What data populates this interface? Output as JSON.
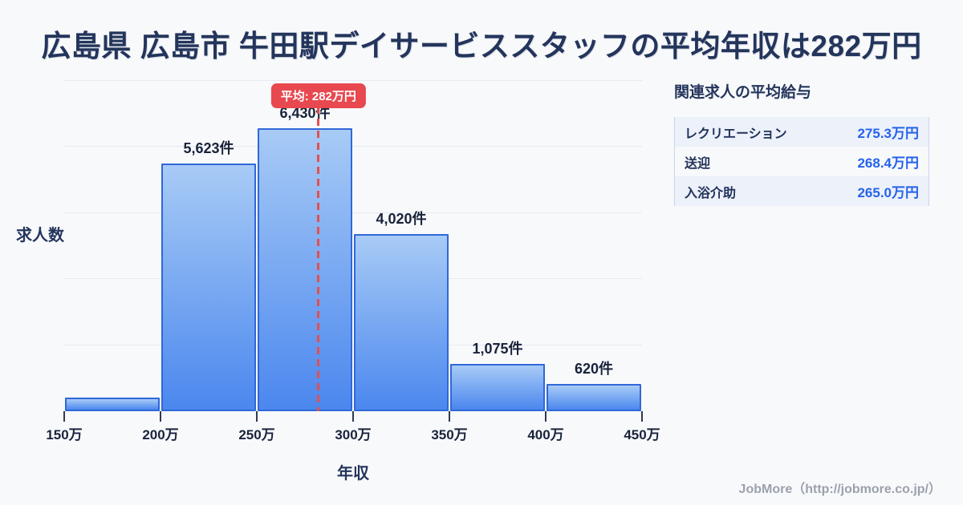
{
  "title": "広島県 広島市 牛田駅デイサービススタッフの平均年収は282万円",
  "chart_data": {
    "type": "bar",
    "title": "広島県 広島市 牛田駅デイサービススタッフの平均年収は282万円",
    "xlabel": "年収",
    "ylabel": "求人数",
    "x_range": [
      150,
      450
    ],
    "x_tick_labels": [
      "150万",
      "200万",
      "250万",
      "300万",
      "350万",
      "400万",
      "450万"
    ],
    "ylim": [
      0,
      7500
    ],
    "gridline_step": 1500,
    "grid": "horizontal-only",
    "bins": [
      {
        "range": "150万-200万",
        "value": 310,
        "label": ""
      },
      {
        "range": "200万-250万",
        "value": 5623,
        "label": "5,623件"
      },
      {
        "range": "250万-300万",
        "value": 6430,
        "label": "6,430件"
      },
      {
        "range": "300万-350万",
        "value": 4020,
        "label": "4,020件"
      },
      {
        "range": "350万-400万",
        "value": 1075,
        "label": "1,075件"
      },
      {
        "range": "400万-450万",
        "value": 620,
        "label": "620件"
      }
    ],
    "average": {
      "x_value": 282,
      "label": "平均: 282万円"
    }
  },
  "side_panel": {
    "header": "関連求人の平均給与",
    "rows": [
      {
        "label": "レクリエーション",
        "value": "275.3万円"
      },
      {
        "label": "送迎",
        "value": "268.4万円"
      },
      {
        "label": "入浴介助",
        "value": "265.0万円"
      }
    ]
  },
  "footer": {
    "credit": "JobMore（http://jobmore.co.jp/）"
  },
  "colors": {
    "background": "#f8f9fb",
    "navy": "#24355c",
    "accent_red": "#e8484f",
    "dash_red": "#e25050",
    "bar_border": "#3068d8",
    "bar_gradient_top": "#a8cbf6",
    "bar_gradient_bottom": "#4b87ee",
    "value_blue": "#2563eb",
    "gridline": "#e6eaf2"
  }
}
